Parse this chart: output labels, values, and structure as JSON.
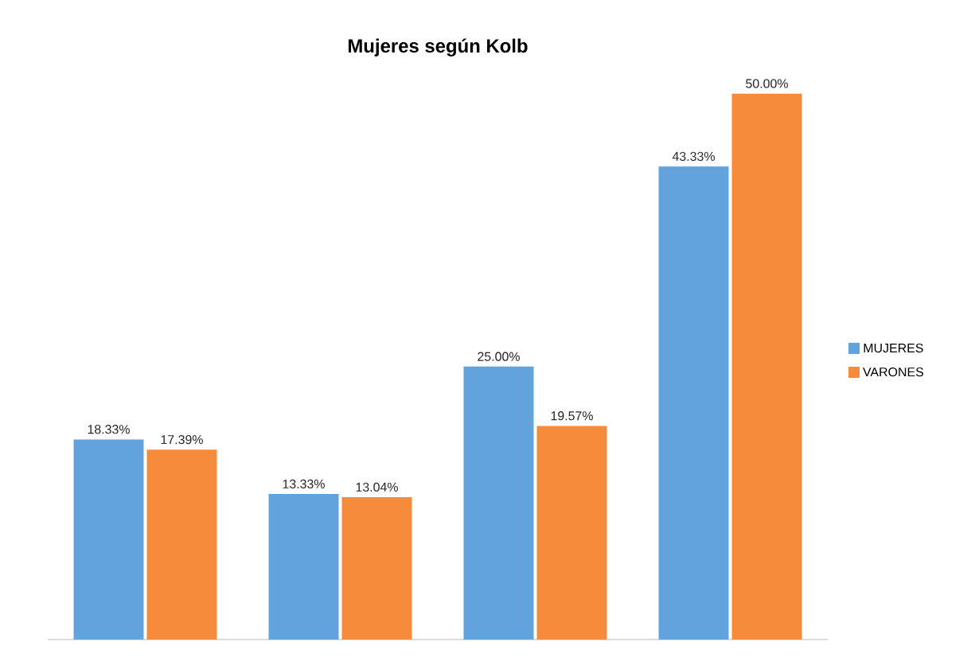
{
  "chart_data": {
    "type": "bar",
    "title": "Mujeres según Kolb",
    "categories": [
      null,
      null,
      null,
      null
    ],
    "series": [
      {
        "name": "MUJERES",
        "color": "#62a3dd",
        "values": [
          18.33,
          13.33,
          25.0,
          43.33
        ],
        "value_labels": [
          "18.33%",
          "13.33%",
          "25.00%",
          "43.33%"
        ]
      },
      {
        "name": "VARONES",
        "color": "#f68b3c",
        "values": [
          17.39,
          13.04,
          19.57,
          50.0
        ],
        "value_labels": [
          "17.39%",
          "13.04%",
          "19.57%",
          "50.00%"
        ]
      }
    ],
    "legend": "right"
  }
}
